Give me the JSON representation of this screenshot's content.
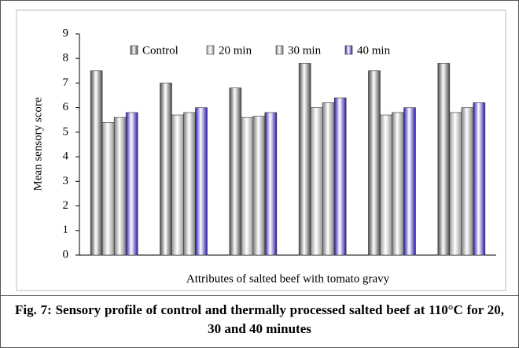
{
  "chart_data": {
    "type": "bar",
    "caption": "Fig. 7: Sensory profile of control and thermally processed salted beef at 110°C for 20, 30 and 40 minutes",
    "x_label": "Attributes of salted beef with tomato gravy",
    "y_label": "Mean sensory score",
    "categories": [
      null,
      null,
      null,
      null,
      null,
      null
    ],
    "series": [
      {
        "name": "Control",
        "color": "#4a4a4a",
        "values": [
          7.5,
          7.0,
          6.8,
          7.8,
          7.5,
          7.8
        ]
      },
      {
        "name": "20 min",
        "color": "#9a9a9a",
        "values": [
          5.4,
          5.7,
          5.6,
          6.0,
          5.7,
          5.8
        ]
      },
      {
        "name": "30 min",
        "color": "#7c7c7c",
        "values": [
          5.6,
          5.8,
          5.65,
          6.2,
          5.8,
          6.0
        ]
      },
      {
        "name": "40 min",
        "color": "#2a1aa8",
        "values": [
          5.8,
          6.0,
          5.8,
          6.4,
          6.0,
          6.2
        ]
      }
    ],
    "ylim": [
      0,
      9
    ],
    "yticks": [
      0,
      1,
      2,
      3,
      4,
      5,
      6,
      7,
      8,
      9
    ],
    "legend": "top"
  }
}
